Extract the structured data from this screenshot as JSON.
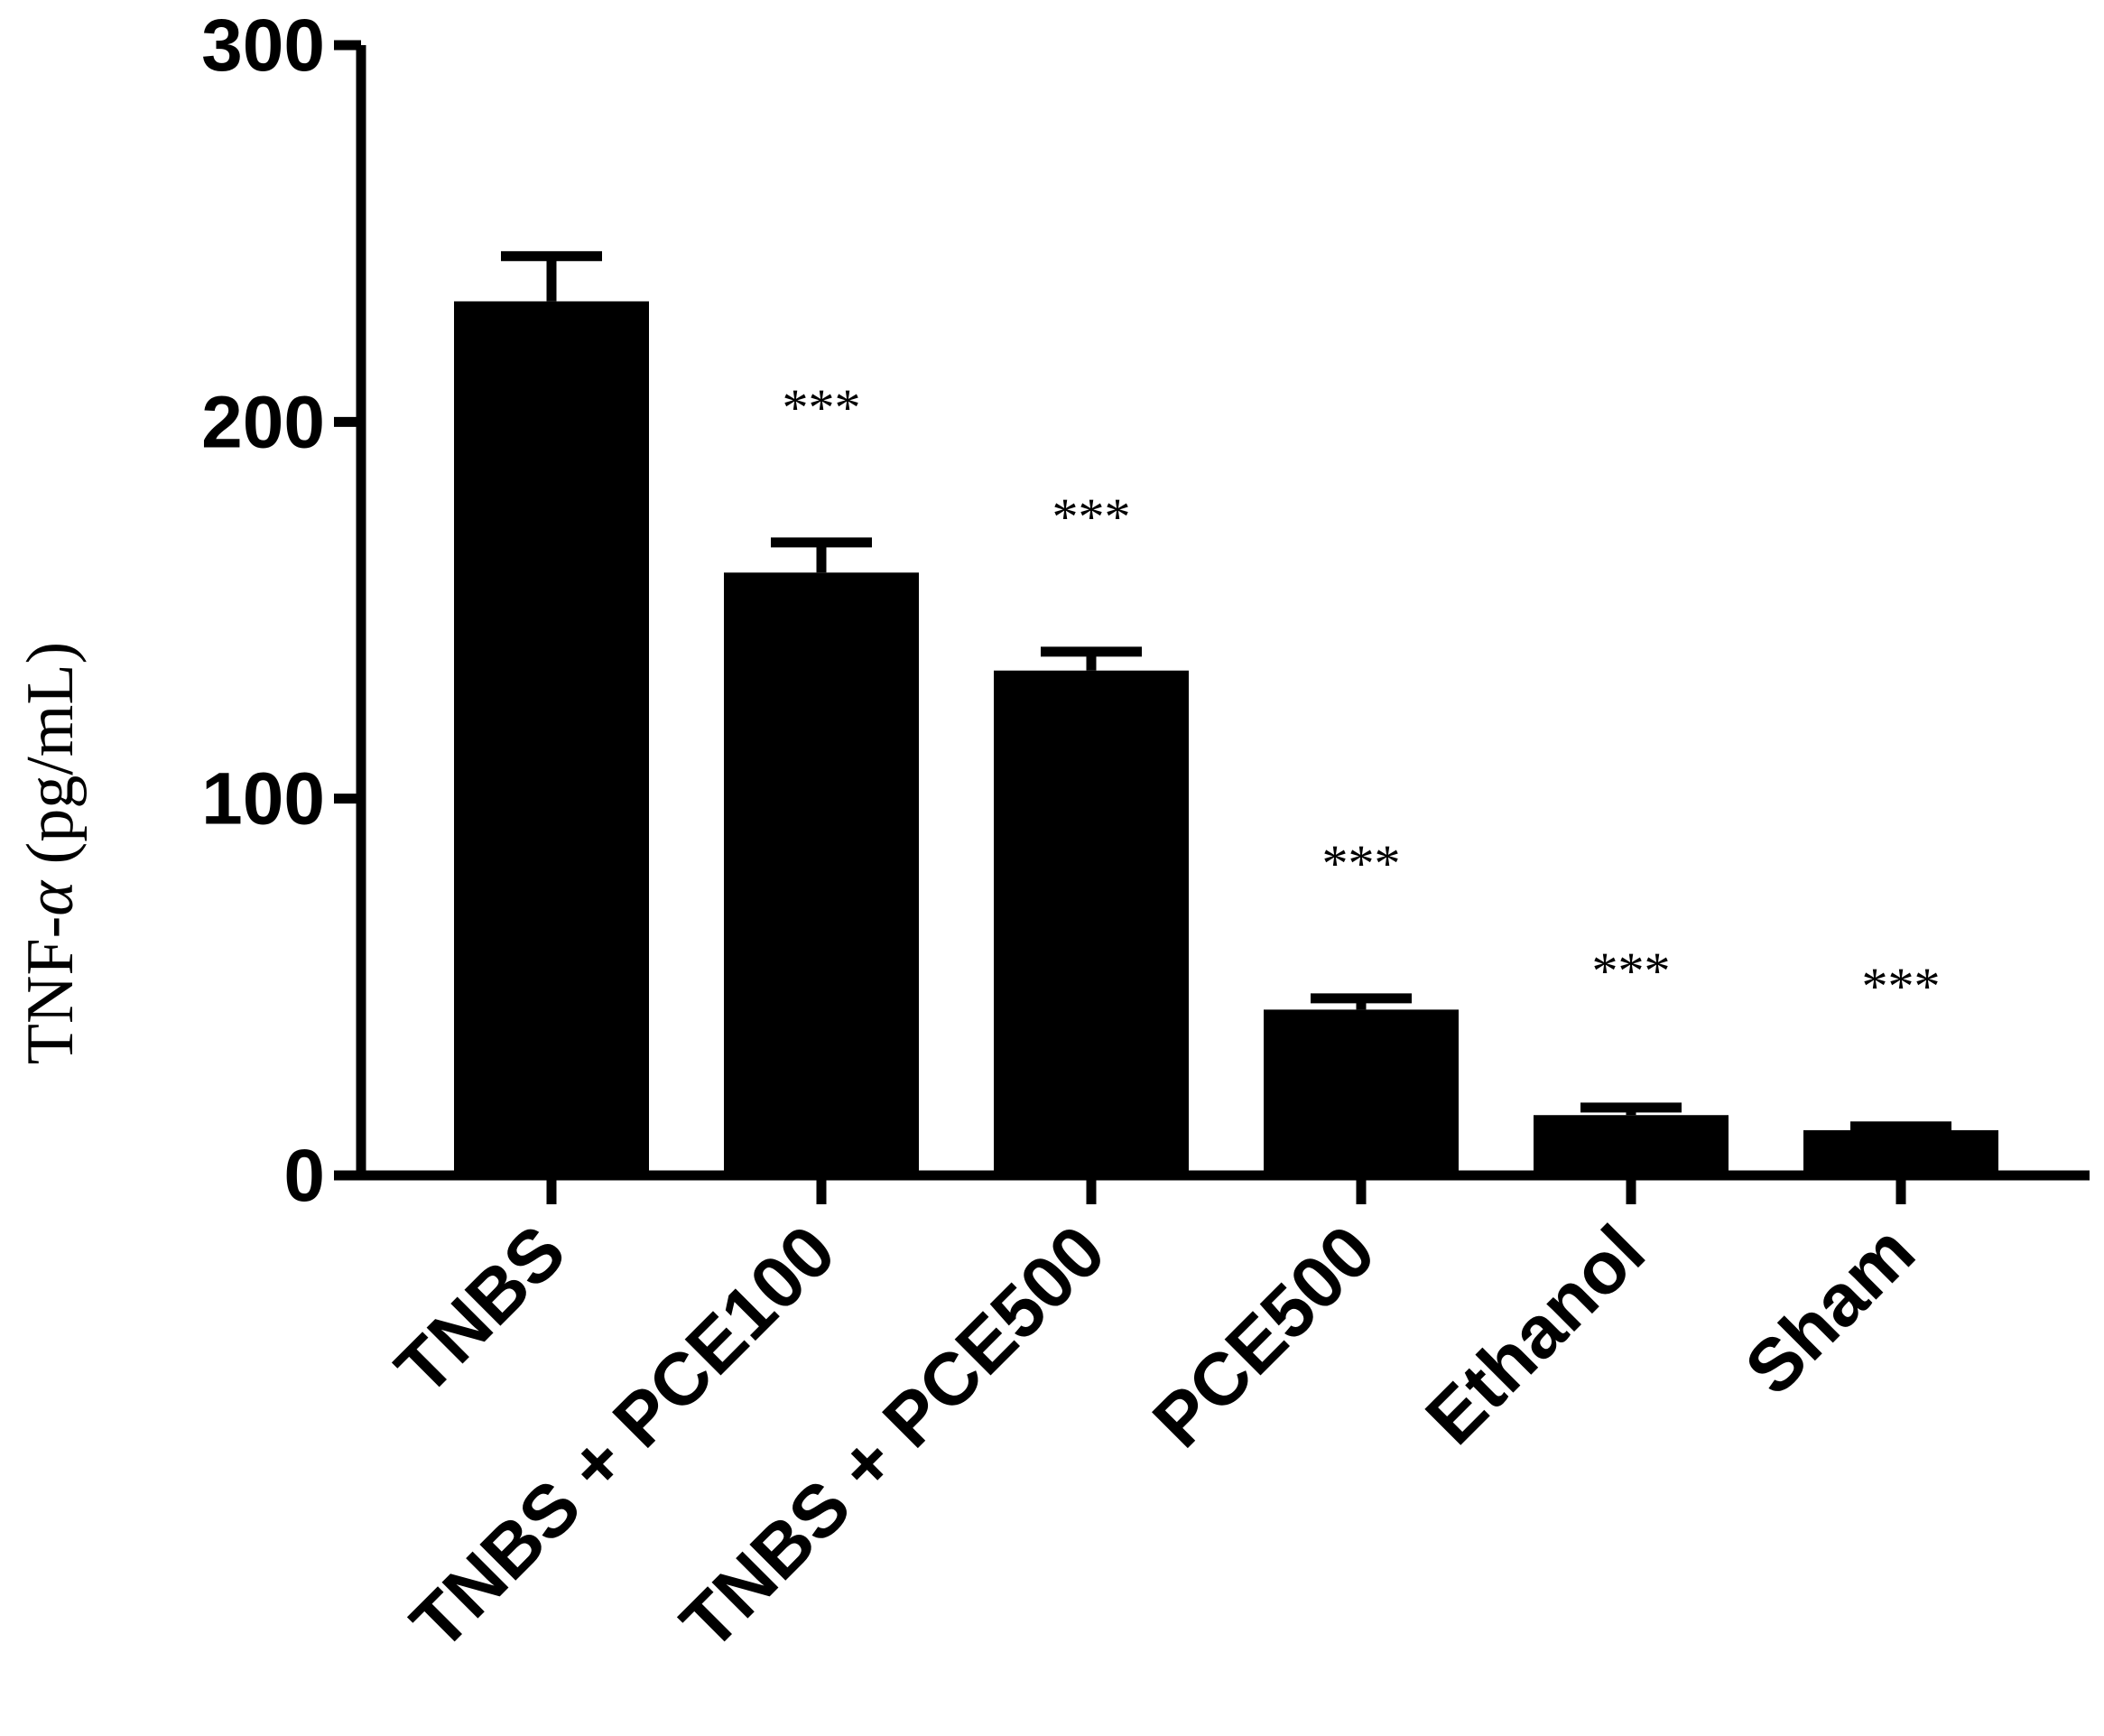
{
  "chart_data": {
    "type": "bar",
    "categories": [
      "TNBS",
      "TNBS + PCE100",
      "TNBS + PCE500",
      "PCE500",
      "Ethanol",
      "Sham"
    ],
    "values": [
      232,
      160,
      134,
      44,
      16,
      12
    ],
    "error": [
      12,
      8,
      5,
      3,
      2,
      1
    ],
    "significance": [
      "",
      "***",
      "***",
      "***",
      "***",
      "***"
    ],
    "title": "",
    "xlabel": "",
    "ylabel": "TNF-α (pg/mL)",
    "ylabel_prefix": "TNF-",
    "ylabel_greek": "α",
    "ylabel_suffix": " (pg/mL)",
    "ylim": [
      0,
      300
    ],
    "yticks": [
      0,
      100,
      200,
      300
    ],
    "grid": false,
    "colors": {
      "bar": "#000000",
      "axis": "#000000",
      "text": "#000000"
    }
  }
}
